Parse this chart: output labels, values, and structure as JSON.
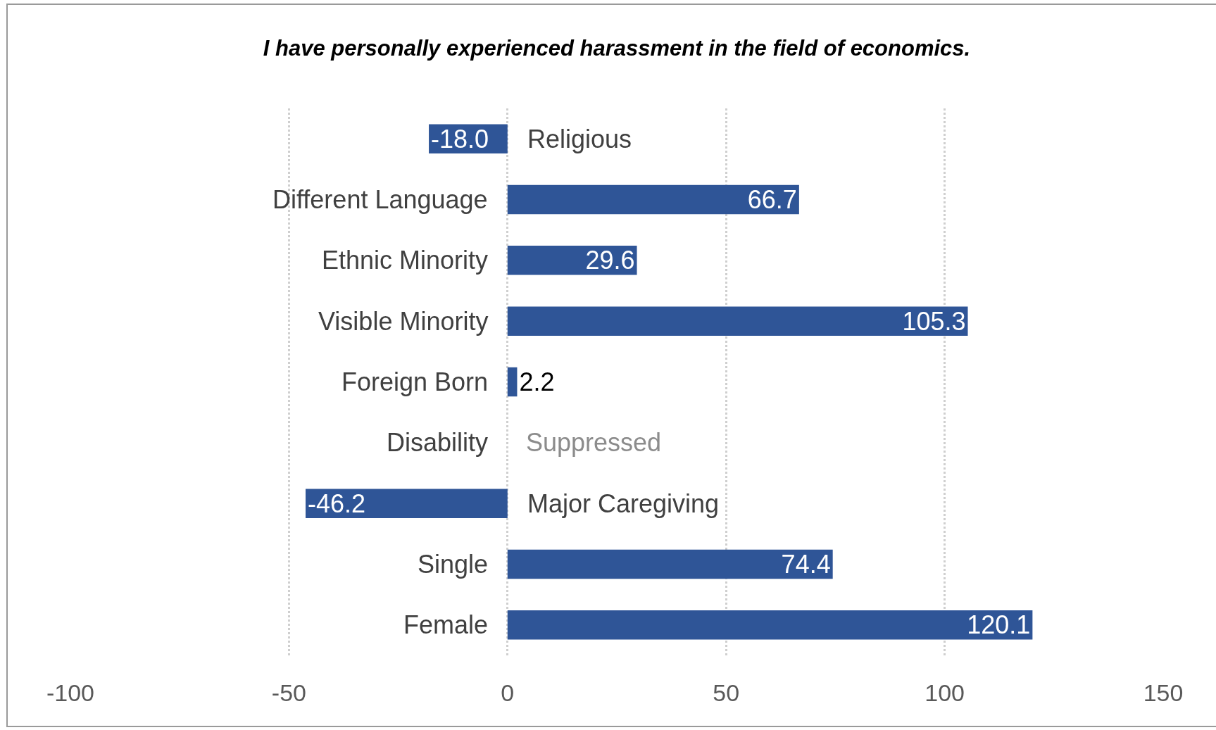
{
  "chart_data": {
    "type": "bar",
    "orientation": "horizontal",
    "title": "I have personally experienced harassment in the field of economics.",
    "categories": [
      "Religious",
      "Different Language",
      "Ethnic Minority",
      "Visible Minority",
      "Foreign Born",
      "Disability",
      "Major Caregiving",
      "Single",
      "Female"
    ],
    "values": [
      -18.0,
      66.7,
      29.6,
      105.3,
      2.2,
      null,
      -46.2,
      74.4,
      120.1
    ],
    "value_labels": [
      "-18.0",
      "66.7",
      "29.6",
      "105.3",
      "2.2",
      "Suppressed",
      "-46.2",
      "74.4",
      "120.1"
    ],
    "color": "#2f5597",
    "xlim": [
      -100,
      150
    ],
    "xticks": [
      -100,
      -50,
      0,
      50,
      100,
      150
    ],
    "grid": "x"
  }
}
